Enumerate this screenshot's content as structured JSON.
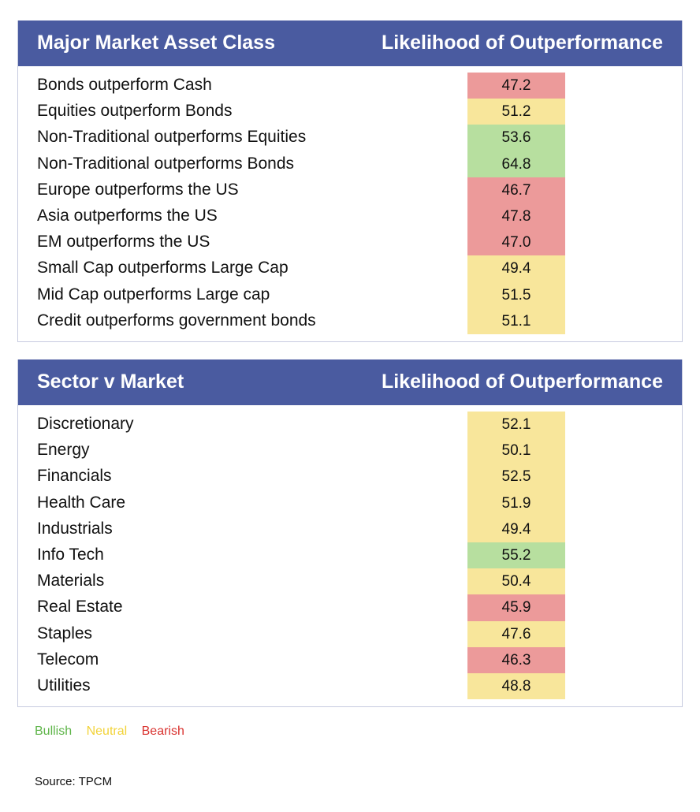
{
  "colors": {
    "header_bg": "#4a5ba0",
    "bullish": "#b7df9f",
    "neutral": "#f8e69b",
    "bearish": "#ec9a9a",
    "legend_bullish": "#5fb54a",
    "legend_neutral": "#f2d33a",
    "legend_bearish": "#d9322f"
  },
  "table1": {
    "header_left": "Major Market Asset Class",
    "header_right": "Likelihood of Outperformance",
    "rows": [
      {
        "label": "Bonds outperform Cash",
        "value": "47.2",
        "status": "bearish"
      },
      {
        "label": "Equities outperform Bonds",
        "value": "51.2",
        "status": "neutral"
      },
      {
        "label": "Non-Traditional outperforms Equities",
        "value": "53.6",
        "status": "bullish"
      },
      {
        "label": "Non-Traditional outperforms Bonds",
        "value": "64.8",
        "status": "bullish"
      },
      {
        "label": "Europe outperforms the US",
        "value": "46.7",
        "status": "bearish"
      },
      {
        "label": "Asia outperforms the US",
        "value": "47.8",
        "status": "bearish"
      },
      {
        "label": "EM outperforms the US",
        "value": "47.0",
        "status": "bearish"
      },
      {
        "label": "Small Cap outperforms Large Cap",
        "value": "49.4",
        "status": "neutral"
      },
      {
        "label": "Mid Cap outperforms Large cap",
        "value": "51.5",
        "status": "neutral"
      },
      {
        "label": "Credit outperforms government bonds",
        "value": "51.1",
        "status": "neutral"
      }
    ]
  },
  "table2": {
    "header_left": "Sector v Market",
    "header_right": "Likelihood of Outperformance",
    "rows": [
      {
        "label": "Discretionary",
        "value": "52.1",
        "status": "neutral"
      },
      {
        "label": "Energy",
        "value": "50.1",
        "status": "neutral"
      },
      {
        "label": "Financials",
        "value": "52.5",
        "status": "neutral"
      },
      {
        "label": "Health Care",
        "value": "51.9",
        "status": "neutral"
      },
      {
        "label": "Industrials",
        "value": "49.4",
        "status": "neutral"
      },
      {
        "label": "Info Tech",
        "value": "55.2",
        "status": "bullish"
      },
      {
        "label": "Materials",
        "value": "50.4",
        "status": "neutral"
      },
      {
        "label": "Real Estate",
        "value": "45.9",
        "status": "bearish"
      },
      {
        "label": "Staples",
        "value": "47.6",
        "status": "neutral"
      },
      {
        "label": "Telecom",
        "value": "46.3",
        "status": "bearish"
      },
      {
        "label": "Utilities",
        "value": "48.8",
        "status": "neutral"
      }
    ]
  },
  "legend": {
    "bullish": "Bullish",
    "neutral": "Neutral",
    "bearish": "Bearish"
  },
  "source": "Source: TPCM"
}
